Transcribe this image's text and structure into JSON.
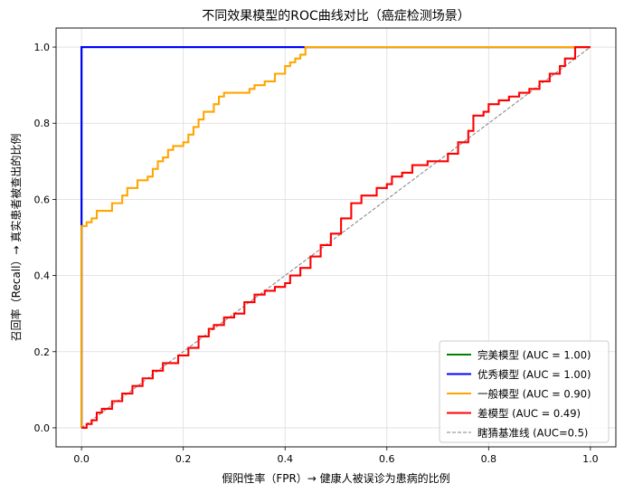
{
  "chart_data": {
    "type": "line",
    "title": "不同效果模型的ROC曲线对比（癌症检测场景）",
    "xlabel": "假阳性率（FPR）→ 健康人被误诊为患病的比例",
    "ylabel": "召回率（Recall）→ 真实患者被查出的比例",
    "xlim": [
      -0.05,
      1.05
    ],
    "ylim": [
      -0.05,
      1.05
    ],
    "xticks": [
      0.0,
      0.2,
      0.4,
      0.6,
      0.8,
      1.0
    ],
    "yticks": [
      0.0,
      0.2,
      0.4,
      0.6,
      0.8,
      1.0
    ],
    "xtick_labels": [
      "0.0",
      "0.2",
      "0.4",
      "0.6",
      "0.8",
      "1.0"
    ],
    "ytick_labels": [
      "0.0",
      "0.2",
      "0.4",
      "0.6",
      "0.8",
      "1.0"
    ],
    "grid": true,
    "legend_position": "lower-right",
    "series": [
      {
        "name": "完美模型 (AUC = 1.00)",
        "color": "#008000",
        "style": "solid",
        "x": [
          0,
          0,
          1
        ],
        "y": [
          0,
          1,
          1
        ]
      },
      {
        "name": "优秀模型 (AUC = 1.00)",
        "color": "#0000ff",
        "style": "solid",
        "x": [
          0,
          0,
          0.43,
          1
        ],
        "y": [
          0,
          1,
          1,
          1
        ]
      },
      {
        "name": "一般模型 (AUC = 0.90)",
        "color": "#ffa500",
        "style": "solid",
        "x": [
          0,
          0,
          0.01,
          0.01,
          0.02,
          0.02,
          0.03,
          0.03,
          0.06,
          0.06,
          0.08,
          0.08,
          0.09,
          0.09,
          0.11,
          0.11,
          0.13,
          0.13,
          0.14,
          0.14,
          0.15,
          0.15,
          0.16,
          0.16,
          0.17,
          0.17,
          0.18,
          0.18,
          0.2,
          0.2,
          0.21,
          0.21,
          0.22,
          0.22,
          0.23,
          0.23,
          0.24,
          0.24,
          0.26,
          0.26,
          0.27,
          0.27,
          0.28,
          0.28,
          0.33,
          0.33,
          0.34,
          0.34,
          0.36,
          0.36,
          0.38,
          0.38,
          0.4,
          0.4,
          0.41,
          0.41,
          0.42,
          0.42,
          0.43,
          0.43,
          0.44,
          0.44,
          1.0
        ],
        "y": [
          0,
          0.53,
          0.53,
          0.54,
          0.54,
          0.55,
          0.55,
          0.57,
          0.57,
          0.59,
          0.59,
          0.61,
          0.61,
          0.63,
          0.63,
          0.65,
          0.65,
          0.66,
          0.66,
          0.68,
          0.68,
          0.7,
          0.7,
          0.71,
          0.71,
          0.73,
          0.73,
          0.74,
          0.74,
          0.75,
          0.75,
          0.77,
          0.77,
          0.79,
          0.79,
          0.81,
          0.81,
          0.83,
          0.83,
          0.85,
          0.85,
          0.87,
          0.87,
          0.88,
          0.88,
          0.89,
          0.89,
          0.9,
          0.9,
          0.91,
          0.91,
          0.93,
          0.93,
          0.95,
          0.95,
          0.96,
          0.96,
          0.97,
          0.97,
          0.98,
          0.98,
          1.0,
          1.0
        ]
      },
      {
        "name": "差模型 (AUC = 0.49)",
        "color": "#ff0000",
        "style": "solid",
        "x": [
          0,
          0.01,
          0.01,
          0.02,
          0.02,
          0.03,
          0.03,
          0.04,
          0.04,
          0.06,
          0.06,
          0.08,
          0.08,
          0.1,
          0.1,
          0.12,
          0.12,
          0.14,
          0.14,
          0.16,
          0.16,
          0.19,
          0.19,
          0.21,
          0.21,
          0.23,
          0.23,
          0.25,
          0.25,
          0.26,
          0.26,
          0.28,
          0.28,
          0.3,
          0.3,
          0.32,
          0.32,
          0.34,
          0.34,
          0.36,
          0.36,
          0.38,
          0.38,
          0.4,
          0.4,
          0.41,
          0.41,
          0.43,
          0.43,
          0.45,
          0.45,
          0.47,
          0.47,
          0.49,
          0.49,
          0.51,
          0.51,
          0.53,
          0.53,
          0.55,
          0.55,
          0.58,
          0.58,
          0.6,
          0.6,
          0.61,
          0.61,
          0.63,
          0.63,
          0.65,
          0.65,
          0.68,
          0.68,
          0.72,
          0.72,
          0.74,
          0.74,
          0.76,
          0.76,
          0.77,
          0.77,
          0.79,
          0.79,
          0.8,
          0.8,
          0.82,
          0.82,
          0.84,
          0.84,
          0.86,
          0.86,
          0.88,
          0.88,
          0.9,
          0.9,
          0.92,
          0.92,
          0.94,
          0.94,
          0.95,
          0.95,
          0.97,
          0.97,
          1.0
        ],
        "y": [
          0,
          0,
          0.01,
          0.01,
          0.02,
          0.02,
          0.04,
          0.04,
          0.05,
          0.05,
          0.07,
          0.07,
          0.09,
          0.09,
          0.11,
          0.11,
          0.13,
          0.13,
          0.15,
          0.15,
          0.17,
          0.17,
          0.19,
          0.19,
          0.21,
          0.21,
          0.24,
          0.24,
          0.26,
          0.26,
          0.27,
          0.27,
          0.29,
          0.29,
          0.3,
          0.3,
          0.33,
          0.33,
          0.35,
          0.35,
          0.36,
          0.36,
          0.37,
          0.37,
          0.38,
          0.38,
          0.4,
          0.4,
          0.42,
          0.42,
          0.45,
          0.45,
          0.48,
          0.48,
          0.51,
          0.51,
          0.55,
          0.55,
          0.59,
          0.59,
          0.61,
          0.61,
          0.63,
          0.63,
          0.64,
          0.64,
          0.66,
          0.66,
          0.67,
          0.67,
          0.69,
          0.69,
          0.7,
          0.7,
          0.72,
          0.72,
          0.75,
          0.75,
          0.78,
          0.78,
          0.82,
          0.82,
          0.83,
          0.83,
          0.85,
          0.85,
          0.86,
          0.86,
          0.87,
          0.87,
          0.88,
          0.88,
          0.89,
          0.89,
          0.91,
          0.91,
          0.93,
          0.93,
          0.95,
          0.95,
          0.97,
          0.97,
          1.0,
          1.0
        ]
      },
      {
        "name": "瞎猜基准线 (AUC=0.5)",
        "color": "#808080",
        "style": "dashed",
        "x": [
          0,
          1
        ],
        "y": [
          0,
          1
        ]
      }
    ]
  }
}
